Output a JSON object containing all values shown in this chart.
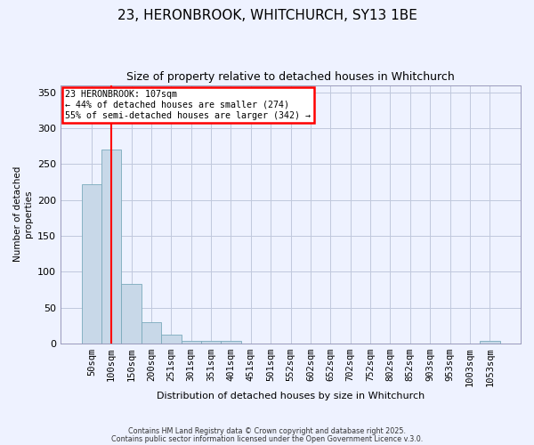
{
  "title_line1": "23, HERONBROOK, WHITCHURCH, SY13 1BE",
  "title_line2": "Size of property relative to detached houses in Whitchurch",
  "xlabel": "Distribution of detached houses by size in Whitchurch",
  "ylabel": "Number of detached\nproperties",
  "bar_color": "#c8d8e8",
  "bar_edge_color": "#7aaabb",
  "categories": [
    "50sqm",
    "100sqm",
    "150sqm",
    "200sqm",
    "251sqm",
    "301sqm",
    "351sqm",
    "401sqm",
    "451sqm",
    "501sqm",
    "552sqm",
    "602sqm",
    "652sqm",
    "702sqm",
    "752sqm",
    "802sqm",
    "852sqm",
    "903sqm",
    "953sqm",
    "1003sqm",
    "1053sqm"
  ],
  "values": [
    222,
    270,
    83,
    30,
    12,
    4,
    3,
    4,
    0,
    0,
    0,
    0,
    0,
    0,
    0,
    0,
    0,
    0,
    0,
    0,
    3
  ],
  "ylim": [
    0,
    360
  ],
  "yticks": [
    0,
    50,
    100,
    150,
    200,
    250,
    300,
    350
  ],
  "red_line_x": 1.0,
  "annotation_text": "23 HERONBROOK: 107sqm\n← 44% of detached houses are smaller (274)\n55% of semi-detached houses are larger (342) →",
  "annotation_box_color": "white",
  "annotation_box_edge": "red",
  "background_color": "#eef2ff",
  "grid_color": "#c0c8dc",
  "footer_line1": "Contains HM Land Registry data © Crown copyright and database right 2025.",
  "footer_line2": "Contains public sector information licensed under the Open Government Licence v.3.0."
}
